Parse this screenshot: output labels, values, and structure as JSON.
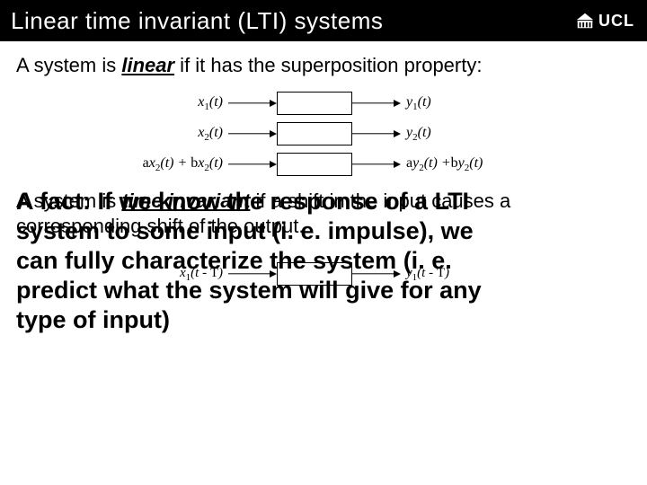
{
  "header": {
    "title": "Linear time invariant (LTI) systems",
    "logo_text": "UCL",
    "logo_color": "#ffffff",
    "bg_color": "#000000"
  },
  "linear_sentence": {
    "pre": "A system is ",
    "keyword": "linear",
    "post": " if it has the superposition property:"
  },
  "superposition_diagram": {
    "type": "flowchart",
    "box_border": "#000000",
    "arrow_color": "#000000",
    "rows": [
      {
        "in_html": "x<span class='sub'>1</span>(t)",
        "out_html": "y<span class='sub'>1</span>(t)"
      },
      {
        "in_html": "x<span class='sub'>2</span>(t)",
        "out_html": "y<span class='sub'>2</span>(t)"
      },
      {
        "in_html": "<span class='up'>a</span>x<span class='sub'>2</span>(t) + <span class='up'>b</span>x<span class='sub'>2</span>(t)",
        "out_html": "<span class='up'>a</span>y<span class='sub'>2</span>(t) +<span class='up'>b</span>y<span class='sub'>2</span>(t)"
      }
    ]
  },
  "time_invariant_sentence": {
    "pre": "A system is ",
    "keyword": "time invariant",
    "post1": "  if a shift in the input causes a",
    "post2": "corresponding shift of the output."
  },
  "shift_diagram": {
    "type": "flowchart",
    "in_html": "x<span class='sub'>1</span>(t - <span class='up'>T</span>)",
    "out_html": "y<span class='sub'>1</span>(t - <span class='up'>T</span>)"
  },
  "fact": {
    "line1": "A fact: If we know the response of a LTI",
    "line2": "system to some input (i. e. impulse), we",
    "line3": "can fully characterize the system (i. e.",
    "line4": "predict what the system will give for any",
    "line5": "type of input)"
  },
  "style": {
    "body_fontsize": 22,
    "fact_fontsize": 27,
    "serif_font": "Times New Roman",
    "sans_font": "Arial",
    "text_color": "#000000",
    "bg_color": "#ffffff"
  }
}
